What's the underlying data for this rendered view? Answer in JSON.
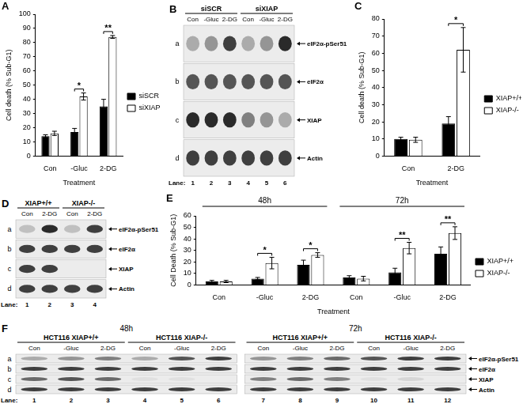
{
  "chart_data": [
    {
      "type": "bar",
      "title": "A",
      "y_label": "Cell death (% Sub-G1)",
      "x_label": "Treatment",
      "categories": [
        "Con",
        "-Gluc",
        "2-DG"
      ],
      "series": [
        {
          "name": "siSCR",
          "color": "#000000",
          "values": [
            14,
            17,
            35
          ],
          "errors": [
            1,
            2.5,
            5
          ]
        },
        {
          "name": "siXIAP",
          "color": "#ffffff",
          "values": [
            16,
            42,
            84
          ],
          "errors": [
            1.5,
            2.5,
            1
          ]
        }
      ],
      "annotations": [
        {
          "text": "*",
          "index": 1
        },
        {
          "text": "**",
          "index": 2
        }
      ],
      "ylim": [
        0,
        100
      ],
      "yticks": [
        0,
        10,
        20,
        30,
        40,
        50,
        60,
        70,
        80,
        90,
        100
      ],
      "grid": false,
      "legend": "right"
    },
    {
      "type": "bar",
      "title": "C",
      "y_label": "Cell death (% Sub-G1)",
      "x_label": "Treatment",
      "categories": [
        "Con",
        "2-DG"
      ],
      "series": [
        {
          "name": "XIAP+/+",
          "color": "#000000",
          "values": [
            10,
            19
          ],
          "errors": [
            1,
            4
          ]
        },
        {
          "name": "XIAP-/-",
          "color": "#ffffff",
          "values": [
            9.5,
            62
          ],
          "errors": [
            1.5,
            13
          ]
        }
      ],
      "annotations": [
        {
          "text": "*",
          "index": 1
        }
      ],
      "ylim": [
        0,
        80
      ],
      "yticks": [
        0,
        10,
        20,
        30,
        40,
        50,
        60,
        70,
        80
      ],
      "grid": false,
      "legend": "right"
    },
    {
      "type": "bar",
      "title": "E",
      "y_label": "Cell Death (% Sub-G1)",
      "x_label": "Treatment",
      "categories": [
        "Con",
        "-Gluc",
        "2-DG",
        "Con",
        "-Gluc",
        "2-DG"
      ],
      "groups": [
        {
          "label": "48h",
          "size": 3
        },
        {
          "label": "72h",
          "size": 3
        }
      ],
      "series": [
        {
          "name": "XIAP+/+",
          "color": "#000000",
          "values": [
            3,
            5.5,
            17.5,
            6.5,
            11,
            27
          ],
          "errors": [
            1,
            1,
            4,
            1.5,
            3.5,
            6
          ]
        },
        {
          "name": "XIAP-/-",
          "color": "#ffffff",
          "values": [
            3,
            19,
            26,
            5.5,
            32,
            45
          ],
          "errors": [
            1,
            5,
            2,
            2,
            5,
            5.5
          ]
        }
      ],
      "annotations": [
        {
          "text": "*",
          "index": 1
        },
        {
          "text": "*",
          "index": 2
        },
        {
          "text": "**",
          "index": 4
        },
        {
          "text": "**",
          "index": 5
        }
      ],
      "ylim": [
        0,
        60
      ],
      "yticks": [
        0,
        10,
        20,
        30,
        40,
        50,
        60
      ],
      "grid": false,
      "legend": "right"
    }
  ],
  "blots": [
    {
      "title": "B",
      "lane_label": "Lane:",
      "rows": [
        {
          "letter": "a",
          "label": "eIF2α-pSer51"
        },
        {
          "letter": "b",
          "label": "eIF2α"
        },
        {
          "letter": "c",
          "label": "XIAP"
        },
        {
          "letter": "d",
          "label": "Actin"
        }
      ],
      "blocks": [
        {
          "groups": [
            {
              "label": "siSCR",
              "size": 3
            },
            {
              "label": "siXIAP",
              "size": 3
            }
          ],
          "lanes": [
            "Con",
            "-Gluc",
            "2-DG",
            "Con",
            "-Gluc",
            "2-DG"
          ],
          "lane_numbers": [
            1,
            2,
            3,
            4,
            5,
            6
          ],
          "bands": [
            [
              0.3,
              0.4,
              0.8,
              0.3,
              0.4,
              0.9
            ],
            [
              0.7,
              0.7,
              0.7,
              0.7,
              0.7,
              0.7
            ],
            [
              0.9,
              0.9,
              0.9,
              0.5,
              0.4,
              0.3
            ],
            [
              0.8,
              0.8,
              0.8,
              0.8,
              0.8,
              0.8
            ]
          ]
        }
      ]
    },
    {
      "title": "D",
      "lane_label": "Lane:",
      "rows": [
        {
          "letter": "a",
          "label": "eIF2α-pSer51"
        },
        {
          "letter": "b",
          "label": "eIF2α"
        },
        {
          "letter": "c",
          "label": "XIAP"
        },
        {
          "letter": "d",
          "label": "Actin"
        }
      ],
      "blocks": [
        {
          "groups": [
            {
              "label": "XIAP+/+",
              "size": 2
            },
            {
              "label": "XIAP-/-",
              "size": 2
            }
          ],
          "lanes": [
            "Con",
            "2-DG",
            "Con",
            "2-DG"
          ],
          "lane_numbers": [
            1,
            2,
            3,
            4
          ],
          "bands": [
            [
              0.2,
              0.9,
              0.2,
              0.8
            ],
            [
              0.8,
              0.8,
              0.8,
              0.8
            ],
            [
              0.8,
              0.8,
              0,
              0
            ],
            [
              0.8,
              0.8,
              0.8,
              0.8
            ]
          ]
        }
      ]
    },
    {
      "title": "F",
      "lane_label": "Lane:",
      "rows": [
        {
          "letter": "a",
          "label": "eIF2α-pSer51"
        },
        {
          "letter": "b",
          "label": "eIF2α"
        },
        {
          "letter": "c",
          "label": "XIAP"
        },
        {
          "letter": "d",
          "label": "Actin"
        }
      ],
      "blocks": [
        {
          "title": "48h",
          "groups": [
            {
              "label": "HCT116 XIAP+/+",
              "size": 3
            },
            {
              "label": "HCT116 XIAP-/-",
              "size": 3
            }
          ],
          "lanes": [
            "Con",
            "-Gluc",
            "2-DG",
            "Con",
            "-Gluc",
            "2-DG"
          ],
          "lane_numbers": [
            1,
            2,
            3,
            4,
            5,
            6
          ],
          "bands": [
            [
              0.3,
              0.4,
              0.5,
              0.3,
              0.7,
              0.8
            ],
            [
              0.8,
              0.8,
              0.8,
              0.8,
              0.8,
              0.8
            ],
            [
              0.6,
              0.7,
              0.6,
              0.05,
              0.05,
              0
            ],
            [
              0.8,
              0.8,
              0.8,
              0.8,
              0.8,
              0.8
            ]
          ]
        },
        {
          "title": "72h",
          "groups": [
            {
              "label": "HCT116 XIAP+/+",
              "size": 3
            },
            {
              "label": "HCT116 XIAP-/-",
              "size": 3
            }
          ],
          "lanes": [
            "Con",
            "-Gluc",
            "2-DG",
            "Con",
            "-Gluc",
            "2-DG"
          ],
          "lane_numbers": [
            7,
            8,
            9,
            10,
            11,
            12
          ],
          "bands": [
            [
              0.4,
              0.5,
              0.6,
              0.7,
              0.8,
              0.8
            ],
            [
              0.8,
              0.8,
              0.8,
              0.8,
              0.8,
              0.8
            ],
            [
              0.5,
              0.6,
              0.5,
              0.05,
              0.1,
              0
            ],
            [
              0.8,
              0.8,
              0.8,
              0.8,
              0.8,
              0.8
            ]
          ]
        }
      ]
    }
  ]
}
